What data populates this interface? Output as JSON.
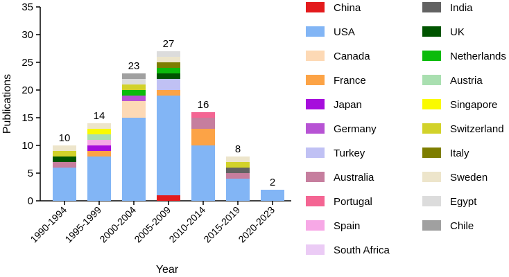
{
  "chart_data": {
    "type": "bar",
    "stacked": true,
    "xlabel": "Year",
    "ylabel": "Publications",
    "ylim": [
      0,
      35
    ],
    "yticks": [
      0,
      5,
      10,
      15,
      20,
      25,
      30,
      35
    ],
    "categories": [
      "1990-1994",
      "1995-1999",
      "2000-2004",
      "2005-2009",
      "2010-2014",
      "2015-2019",
      "2020-2023"
    ],
    "totals": [
      10,
      14,
      23,
      27,
      16,
      8,
      2
    ],
    "legend_position": "right",
    "series": [
      {
        "name": "China",
        "color": "#e31a1c",
        "values": [
          0,
          0,
          0,
          1,
          0,
          0,
          0
        ]
      },
      {
        "name": "USA",
        "color": "#82b5f5",
        "values": [
          6,
          8,
          15,
          18,
          10,
          4,
          2
        ]
      },
      {
        "name": "Canada",
        "color": "#fdd9b5",
        "values": [
          0,
          0,
          3,
          0,
          0,
          0,
          0
        ]
      },
      {
        "name": "France",
        "color": "#fca346",
        "values": [
          0,
          1,
          0,
          1,
          3,
          0,
          0
        ]
      },
      {
        "name": "Japan",
        "color": "#a60ddc",
        "values": [
          0,
          1,
          0,
          0,
          0,
          0,
          0
        ]
      },
      {
        "name": "Germany",
        "color": "#b753d4",
        "values": [
          0,
          0,
          1,
          0,
          0,
          0,
          0
        ]
      },
      {
        "name": "Turkey",
        "color": "#c0c1f4",
        "values": [
          0,
          0,
          0,
          2,
          0,
          0,
          0
        ]
      },
      {
        "name": "Australia",
        "color": "#c67e9e",
        "values": [
          1,
          0,
          0,
          0,
          2,
          1,
          0
        ]
      },
      {
        "name": "Portugal",
        "color": "#f46593",
        "values": [
          0,
          0,
          0,
          0,
          1,
          0,
          0
        ]
      },
      {
        "name": "Spain",
        "color": "#f7a8e6",
        "values": [
          0,
          1,
          0,
          0,
          0,
          0,
          0
        ]
      },
      {
        "name": "South Africa",
        "color": "#ebcbf5",
        "values": [
          0,
          0,
          0,
          0,
          0,
          0,
          0
        ]
      },
      {
        "name": "India",
        "color": "#626262",
        "values": [
          0,
          0,
          0,
          0,
          0,
          1,
          0
        ]
      },
      {
        "name": "UK",
        "color": "#005400",
        "values": [
          1,
          0,
          0,
          1,
          0,
          0,
          0
        ]
      },
      {
        "name": "Netherlands",
        "color": "#0bbb0b",
        "values": [
          0,
          0,
          1,
          1,
          0,
          0,
          0
        ]
      },
      {
        "name": "Austria",
        "color": "#a9dfb0",
        "values": [
          0,
          1,
          0,
          0,
          0,
          0,
          0
        ]
      },
      {
        "name": "Singapore",
        "color": "#fafa00",
        "values": [
          0,
          1,
          0,
          0,
          0,
          0,
          0
        ]
      },
      {
        "name": "Switzerland",
        "color": "#d2d22a",
        "values": [
          1,
          0,
          1,
          0,
          0,
          1,
          0
        ]
      },
      {
        "name": "Italy",
        "color": "#7d7d00",
        "values": [
          0,
          0,
          0,
          1,
          0,
          0,
          0
        ]
      },
      {
        "name": "Sweden",
        "color": "#ede5cb",
        "values": [
          1,
          1,
          0,
          1,
          0,
          1,
          0
        ]
      },
      {
        "name": "Egypt",
        "color": "#dcdcdc",
        "values": [
          0,
          0,
          1,
          1,
          0,
          0,
          0
        ]
      },
      {
        "name": "Chile",
        "color": "#a0a0a0",
        "values": [
          0,
          0,
          1,
          0,
          0,
          0,
          0
        ]
      }
    ]
  }
}
